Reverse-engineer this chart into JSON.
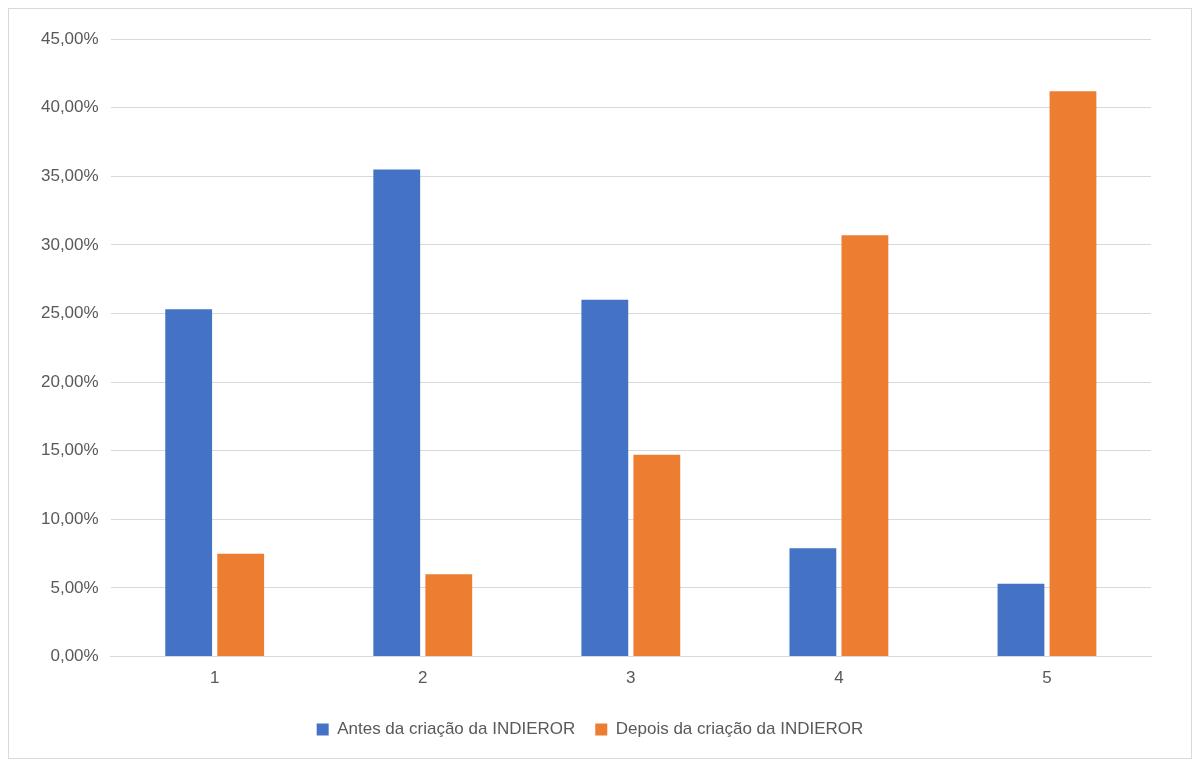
{
  "chart_data": {
    "type": "bar",
    "categories": [
      "1",
      "2",
      "3",
      "4",
      "5"
    ],
    "series": [
      {
        "name": "Antes da criação da INDIEROR",
        "color": "#4472c4",
        "values": [
          25.3,
          35.5,
          26.0,
          7.9,
          5.3
        ]
      },
      {
        "name": "Depois da criação da INDIEROR",
        "color": "#ed7d31",
        "values": [
          7.5,
          6.0,
          14.7,
          30.7,
          41.2
        ]
      }
    ],
    "ylim": [
      0,
      45
    ],
    "yticks": [
      {
        "value": 0,
        "label": "0,00%"
      },
      {
        "value": 5,
        "label": "5,00%"
      },
      {
        "value": 10,
        "label": "10,00%"
      },
      {
        "value": 15,
        "label": "15,00%"
      },
      {
        "value": 20,
        "label": "20,00%"
      },
      {
        "value": 25,
        "label": "25,00%"
      },
      {
        "value": 30,
        "label": "30,00%"
      },
      {
        "value": 35,
        "label": "35,00%"
      },
      {
        "value": 40,
        "label": "40,00%"
      },
      {
        "value": 45,
        "label": "45,00%"
      }
    ],
    "grid": "y",
    "legend": "bottom"
  }
}
